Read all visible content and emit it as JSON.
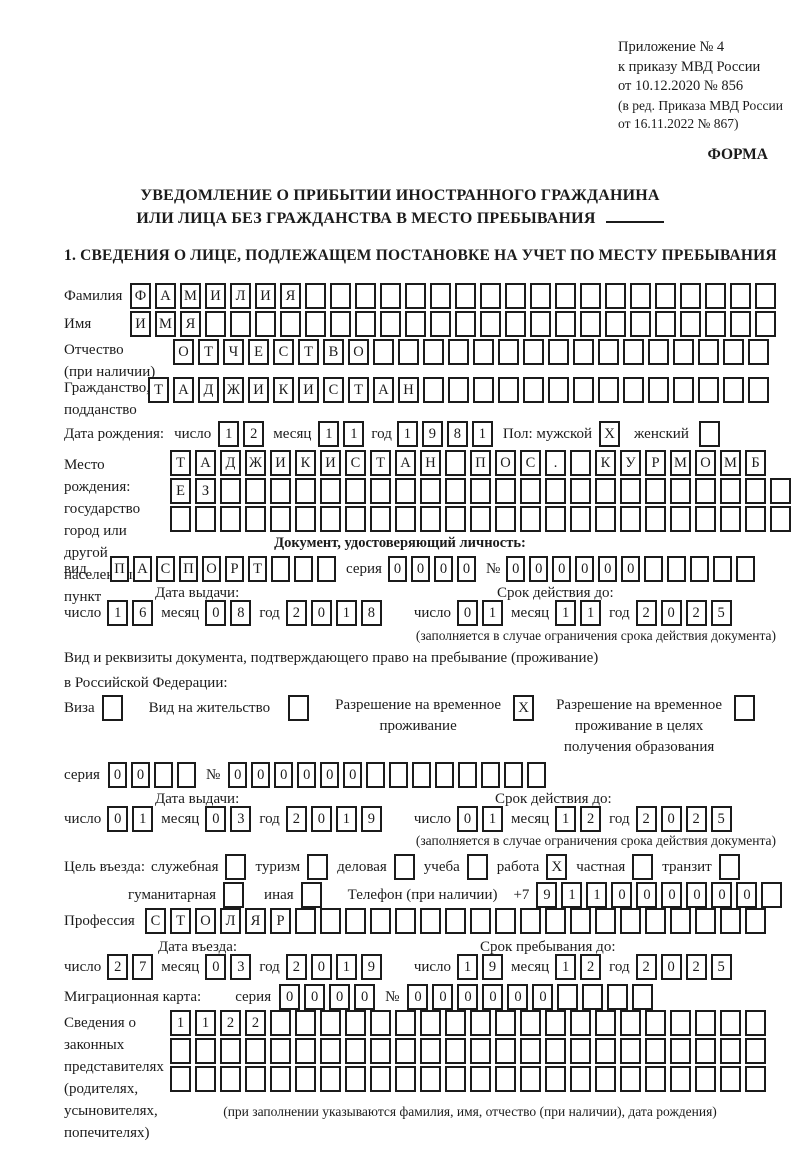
{
  "colors": {
    "ink": "#1b1b1b",
    "paper": "#ffffff"
  },
  "header": {
    "lines": [
      "Приложение № 4",
      "к приказу МВД России",
      "от 10.12.2020 № 856"
    ],
    "sub_lines": [
      "(в ред. Приказа МВД России",
      "от 16.11.2022 № 867)"
    ],
    "forma": "ФОРМА"
  },
  "title": {
    "line1": "УВЕДОМЛЕНИЕ О ПРИБЫТИИ ИНОСТРАННОГО ГРАЖДАНИНА",
    "line2": "ИЛИ ЛИЦА БЕЗ ГРАЖДАНСТВА В МЕСТО ПРЕБЫВАНИЯ"
  },
  "section1_heading": "1. СВЕДЕНИЯ О ЛИЦЕ, ПОДЛЕЖАЩЕМ ПОСТАНОВКЕ НА УЧЕТ ПО МЕСТУ ПРЕБЫВАНИЯ",
  "date_labels": {
    "day": "число",
    "month": "месяц",
    "year": "год"
  },
  "surname": {
    "label": "Фамилия",
    "cells": {
      "text": "ФАМИЛИЯ",
      "total": 26
    }
  },
  "firstname": {
    "label": "Имя",
    "cells": {
      "text": "ИМЯ",
      "total": 26
    }
  },
  "patronymic": {
    "label": "Отчество",
    "label2": "(при наличии)",
    "cells": {
      "text": "ОТЧЕСТВО",
      "total": 24
    }
  },
  "citizenship": {
    "label": "Гражданство,",
    "label2": "подданство",
    "cells": {
      "text": "ТАДЖИКИСТАН",
      "total": 25
    }
  },
  "birth": {
    "label": "Дата рождения:",
    "day": {
      "text": "12",
      "total": 2
    },
    "month": {
      "text": "11",
      "total": 2
    },
    "year": {
      "text": "1981",
      "total": 4
    },
    "gender_label": "Пол: мужской",
    "male_checked": true,
    "female_label": "женский",
    "female_checked": false
  },
  "birthplace": {
    "labels": [
      "Место рождения:",
      "государство",
      "город или другой",
      "населенный пункт"
    ],
    "rows": [
      {
        "text": "ТАДЖИКИСТАН ПОС. КУРМОМБ",
        "total": 24
      },
      {
        "text": "ЕЗ",
        "total": 25
      },
      {
        "text": "",
        "total": 25
      }
    ]
  },
  "id_document": {
    "heading": "Документ, удостоверяющий личность:",
    "type_label": "вид",
    "type": {
      "text": "ПАСПОРТ",
      "total": 10
    },
    "series_label": "серия",
    "series": {
      "text": "0000",
      "total": 4
    },
    "number_label": "№",
    "number": {
      "text": "000000",
      "total": 11
    },
    "issue_label": "Дата выдачи:",
    "issue": {
      "day": {
        "text": "16",
        "total": 2
      },
      "month": {
        "text": "08",
        "total": 2
      },
      "year": {
        "text": "2018",
        "total": 4
      }
    },
    "expiry_label": "Срок действия до:",
    "expiry": {
      "day": {
        "text": "01",
        "total": 2
      },
      "month": {
        "text": "11",
        "total": 2
      },
      "year": {
        "text": "2025",
        "total": 4
      }
    },
    "note": "(заполняется в случае ограничения срока действия документа)"
  },
  "residence": {
    "intro1": "Вид и реквизиты документа, подтверждающего право на пребывание (проживание)",
    "intro2": "в Российской Федерации:",
    "options": [
      {
        "lines": [
          "Виза"
        ],
        "checked": false
      },
      {
        "lines": [
          "Вид на жительство"
        ],
        "checked": false
      },
      {
        "lines": [
          "Разрешение на временное",
          "проживание"
        ],
        "checked": true
      },
      {
        "lines": [
          "Разрешение на временное",
          "проживание в целях",
          "получения образования"
        ],
        "checked": false
      }
    ],
    "series_label": "серия",
    "series": {
      "text": "00",
      "total": 4
    },
    "number_label": "№",
    "number": {
      "text": "000000",
      "total": 14
    },
    "issue_label": "Дата выдачи:",
    "issue": {
      "day": {
        "text": "01",
        "total": 2
      },
      "month": {
        "text": "03",
        "total": 2
      },
      "year": {
        "text": "2019",
        "total": 4
      }
    },
    "expiry_label": "Срок действия до:",
    "expiry": {
      "day": {
        "text": "01",
        "total": 2
      },
      "month": {
        "text": "12",
        "total": 2
      },
      "year": {
        "text": "2025",
        "total": 4
      }
    },
    "note": "(заполняется в случае ограничения срока действия документа)"
  },
  "purpose": {
    "label": "Цель въезда:",
    "options": [
      {
        "label": "служебная",
        "checked": false
      },
      {
        "label": "туризм",
        "checked": false
      },
      {
        "label": "деловая",
        "checked": false
      },
      {
        "label": "учеба",
        "checked": false
      },
      {
        "label": "работа",
        "checked": true
      },
      {
        "label": "частная",
        "checked": false
      },
      {
        "label": "транзит",
        "checked": false
      }
    ],
    "options2": [
      {
        "label": "гуманитарная",
        "checked": false
      },
      {
        "label": "иная",
        "checked": false
      }
    ],
    "phone_label": "Телефон (при наличии)",
    "phone_prefix": "+7",
    "phone": {
      "text": "911000000",
      "total": 10
    }
  },
  "profession": {
    "label": "Профессия",
    "cells": {
      "text": "СТОЛЯР",
      "total": 25
    }
  },
  "entry": {
    "entry_label": "Дата въезда:",
    "entry_date": {
      "day": {
        "text": "27",
        "total": 2
      },
      "month": {
        "text": "03",
        "total": 2
      },
      "year": {
        "text": "2019",
        "total": 4
      }
    },
    "stay_label": "Срок пребывания до:",
    "stay_date": {
      "day": {
        "text": "19",
        "total": 2
      },
      "month": {
        "text": "12",
        "total": 2
      },
      "year": {
        "text": "2025",
        "total": 4
      }
    }
  },
  "migration_card": {
    "label": "Миграционная карта:",
    "series_label": "серия",
    "series": {
      "text": "0000",
      "total": 4
    },
    "number_label": "№",
    "number": {
      "text": "000000",
      "total": 10
    }
  },
  "representatives": {
    "labels": [
      "Сведения о",
      "законных",
      "представителях",
      "(родителях,",
      "усыновителях,",
      "попечителях)"
    ],
    "rows": [
      {
        "text": "1122",
        "total": 24
      },
      {
        "text": "",
        "total": 24
      },
      {
        "text": "",
        "total": 24
      }
    ],
    "note": "(при заполнении указываются фамилия, имя, отчество (при наличии), дата рождения)"
  }
}
